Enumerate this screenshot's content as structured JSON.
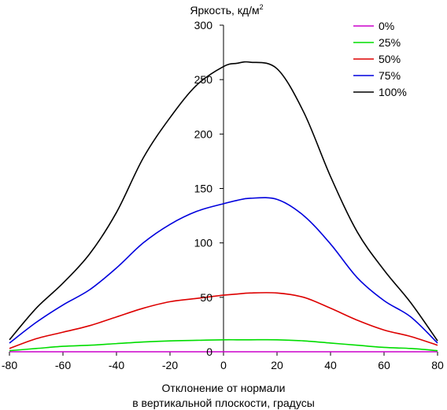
{
  "chart_data": {
    "type": "line",
    "title": "",
    "ylabel_main": "Яркость, кд/м",
    "ylabel_sup": "2",
    "xlabel_line1": "Отклонение от нормали",
    "xlabel_line2": "в вертикальной плоскости, градусы",
    "xlim": [
      -80,
      80
    ],
    "ylim": [
      0,
      300
    ],
    "x_ticks": [
      -80,
      -60,
      -40,
      -20,
      0,
      20,
      40,
      60,
      80
    ],
    "y_ticks": [
      0,
      50,
      100,
      150,
      200,
      250,
      300
    ],
    "x_tick_labels": [
      "-80",
      "-60",
      "-40",
      "-20",
      "0",
      "20",
      "40",
      "60",
      "80"
    ],
    "y_tick_labels": [
      "0",
      "50",
      "100",
      "150",
      "200",
      "250",
      "300"
    ],
    "legend_position": "top-right",
    "x": [
      -80,
      -70,
      -60,
      -50,
      -40,
      -30,
      -20,
      -10,
      0,
      5,
      10,
      20,
      30,
      40,
      50,
      60,
      70,
      80
    ],
    "series": [
      {
        "name": "0%",
        "color": "#cc00cc",
        "values": [
          0,
          0,
          0,
          0,
          0,
          0,
          0,
          0,
          0,
          0,
          0,
          0,
          0,
          0,
          0,
          0,
          0,
          0
        ]
      },
      {
        "name": "25%",
        "color": "#00dd00",
        "values": [
          1,
          3,
          5,
          6,
          7.5,
          9,
          10,
          10.5,
          11,
          11,
          11,
          11,
          10,
          8,
          6,
          4,
          3,
          1
        ]
      },
      {
        "name": "50%",
        "color": "#dd0000",
        "values": [
          3,
          12,
          18,
          24,
          32,
          40,
          46,
          49,
          52,
          53,
          54,
          54,
          50,
          40,
          29,
          20,
          14,
          6
        ]
      },
      {
        "name": "75%",
        "color": "#0000dd",
        "values": [
          8,
          27,
          43,
          57,
          77,
          100,
          117,
          129,
          136,
          139,
          141,
          140,
          125,
          99,
          68,
          47,
          32,
          8
        ]
      },
      {
        "name": "100%",
        "color": "#000000",
        "values": [
          11,
          40,
          63,
          90,
          128,
          178,
          215,
          245,
          262,
          265,
          266,
          260,
          220,
          161,
          110,
          75,
          45,
          10
        ]
      }
    ]
  }
}
